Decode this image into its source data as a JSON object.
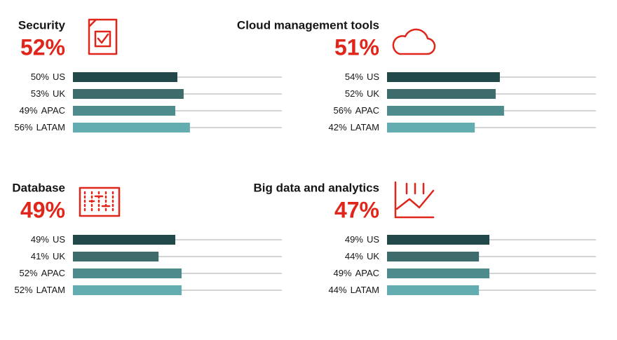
{
  "chart_data": [
    {
      "type": "bar",
      "title": "Security",
      "headline": {
        "value": 52,
        "label": "52%"
      },
      "categories": [
        "US",
        "UK",
        "APAC",
        "LATAM"
      ],
      "values": [
        50,
        53,
        49,
        56
      ],
      "value_labels": [
        "50%",
        "53%",
        "49%",
        "56%"
      ],
      "colors": [
        "#22484a",
        "#3e6c6c",
        "#4e8b8c",
        "#63adb0"
      ],
      "xlim": [
        0,
        100
      ]
    },
    {
      "type": "bar",
      "title": "Cloud management tools",
      "headline": {
        "value": 51,
        "label": "51%"
      },
      "categories": [
        "US",
        "UK",
        "APAC",
        "LATAM"
      ],
      "values": [
        54,
        52,
        56,
        42
      ],
      "value_labels": [
        "54%",
        "52%",
        "56%",
        "42%"
      ],
      "colors": [
        "#22484a",
        "#3e6c6c",
        "#4e8b8c",
        "#63adb0"
      ],
      "xlim": [
        0,
        100
      ]
    },
    {
      "type": "bar",
      "title": "Database",
      "headline": {
        "value": 49,
        "label": "49%"
      },
      "categories": [
        "US",
        "UK",
        "APAC",
        "LATAM"
      ],
      "values": [
        49,
        41,
        52,
        52
      ],
      "value_labels": [
        "49%",
        "41%",
        "52%",
        "52%"
      ],
      "colors": [
        "#22484a",
        "#3e6c6c",
        "#4e8b8c",
        "#63adb0"
      ],
      "xlim": [
        0,
        100
      ]
    },
    {
      "type": "bar",
      "title": "Big data and analytics",
      "headline": {
        "value": 47,
        "label": "47%"
      },
      "categories": [
        "US",
        "UK",
        "APAC",
        "LATAM"
      ],
      "values": [
        49,
        44,
        49,
        44
      ],
      "value_labels": [
        "49%",
        "44%",
        "49%",
        "44%"
      ],
      "colors": [
        "#22484a",
        "#3e6c6c",
        "#4e8b8c",
        "#63adb0"
      ],
      "xlim": [
        0,
        100
      ]
    }
  ]
}
